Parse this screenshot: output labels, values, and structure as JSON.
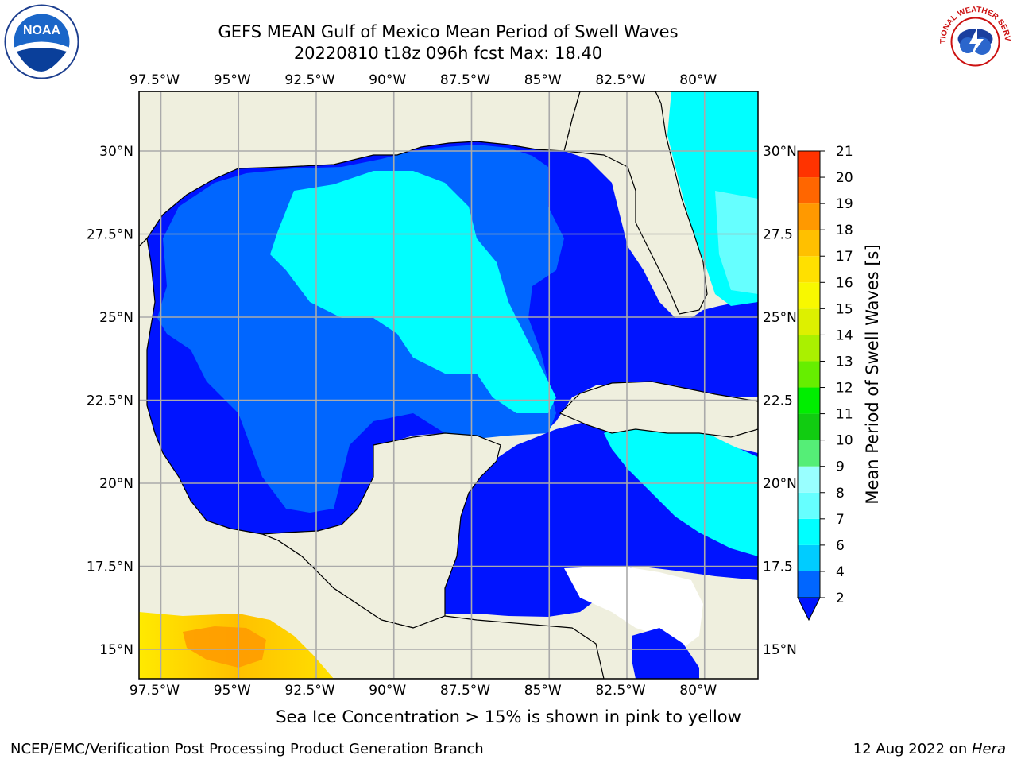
{
  "header": {
    "title": "GEFS MEAN Gulf of Mexico Mean Period of Swell Waves",
    "subtitle": "20220810 t18z 096h fcst   Max: 18.40"
  },
  "map": {
    "lon_labels": [
      "97.5°W",
      "95°W",
      "92.5°W",
      "90°W",
      "87.5°W",
      "85°W",
      "82.5°W",
      "80°W"
    ],
    "lat_labels": [
      "30°N",
      "27.5°N",
      "25°N",
      "22.5°N",
      "20°N",
      "17.5°N",
      "15°N"
    ],
    "lat_labels_right": [
      "30°N",
      "27.5",
      "25°N",
      "22.5",
      "20°N",
      "17.5",
      "15°N"
    ],
    "lon_range": [
      -98,
      -78.3
    ],
    "lat_range": [
      14,
      31.5
    ],
    "colors": {
      "land": "#efefde",
      "ocean_dark": "#0014ff",
      "ocean_mid": "#0066ff",
      "ocean_light": "#00ffff",
      "ice": "#ffea00",
      "grid": "#aaaaaa"
    }
  },
  "colorbar": {
    "label": "Mean Period of Swell Waves [s]",
    "ticks": [
      "2",
      "4",
      "6",
      "7",
      "8",
      "9",
      "10",
      "11",
      "12",
      "13",
      "14",
      "15",
      "16",
      "17",
      "18",
      "19",
      "20",
      "21"
    ],
    "colors": [
      "#0066ff",
      "#00ccff",
      "#00ffff",
      "#66ffff",
      "#99ffff",
      "#55ee77",
      "#11cc11",
      "#00ee00",
      "#66ee00",
      "#aaf000",
      "#ddf000",
      "#f8f800",
      "#ffe000",
      "#ffc000",
      "#ff9900",
      "#ff6600",
      "#ff3300",
      "#ff0000"
    ],
    "extend_color": "#0014ff"
  },
  "logos": {
    "left": "NOAA",
    "right": "NATIONAL WEATHER SERVICE"
  },
  "note": "Sea Ice Concentration > 15% is shown in pink to yellow",
  "footer": {
    "left": "NCEP/EMC/Verification Post Processing Product Generation Branch",
    "date": "12 Aug 2022 on ",
    "machine": "Hera"
  }
}
